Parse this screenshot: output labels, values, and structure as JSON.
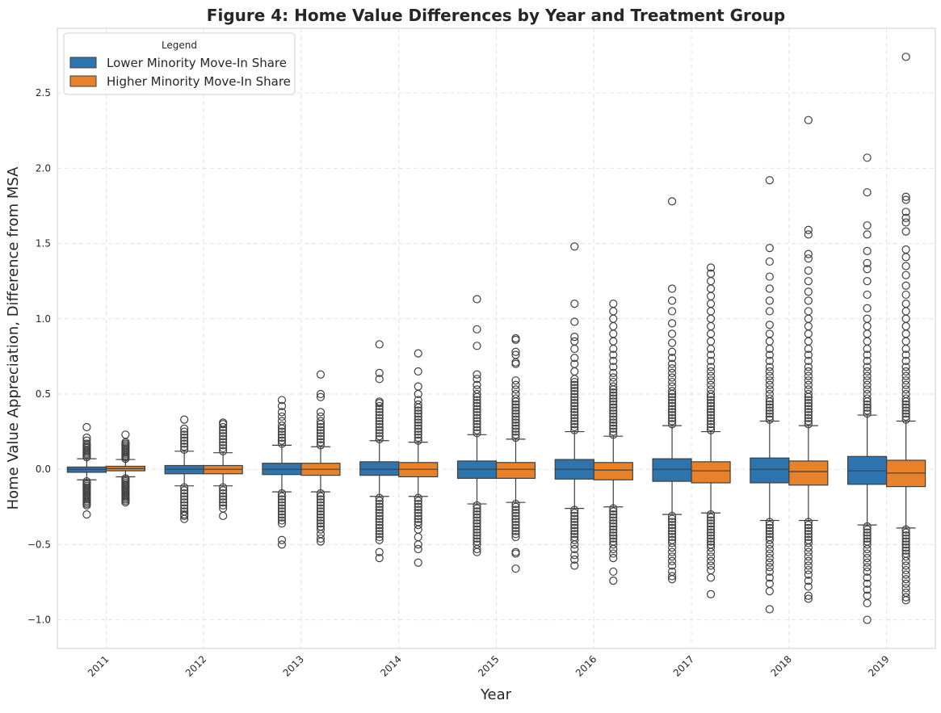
{
  "chart_data": {
    "type": "box",
    "title": "Figure 4: Home Value Differences by Year and Treatment Group",
    "xlabel": "Year",
    "ylabel": "Home Value Appreciation, Difference from MSA",
    "categories": [
      "2011",
      "2012",
      "2013",
      "2014",
      "2015",
      "2016",
      "2017",
      "2018",
      "2019"
    ],
    "ylim": [
      -1.19,
      2.93
    ],
    "yticks": [
      -1.0,
      -0.5,
      0.0,
      0.5,
      1.0,
      1.5,
      2.0,
      2.5
    ],
    "ytick_labels": [
      "−1.0",
      "−0.5",
      "0.0",
      "0.5",
      "1.0",
      "1.5",
      "2.0",
      "2.5"
    ],
    "grid": true,
    "legend": {
      "title": "Legend",
      "position": "top-left"
    },
    "series": [
      {
        "name": "Lower Minority Move-In Share",
        "color": "#2e75b0",
        "boxes": [
          {
            "q1": -0.02,
            "median": 0.0,
            "q3": 0.015,
            "whisker_low": -0.07,
            "whisker_high": 0.07,
            "outliers_high": [
              0.08,
              0.09,
              0.1,
              0.11,
              0.12,
              0.13,
              0.14,
              0.15,
              0.16,
              0.17,
              0.19,
              0.21,
              0.28
            ],
            "outliers_low": [
              -0.08,
              -0.09,
              -0.1,
              -0.11,
              -0.12,
              -0.13,
              -0.14,
              -0.15,
              -0.16,
              -0.17,
              -0.18,
              -0.19,
              -0.2,
              -0.21,
              -0.22,
              -0.23,
              -0.24,
              -0.3
            ]
          },
          {
            "q1": -0.03,
            "median": 0.0,
            "q3": 0.025,
            "whisker_low": -0.11,
            "whisker_high": 0.12,
            "outliers_high": [
              0.13,
              0.15,
              0.17,
              0.19,
              0.21,
              0.23,
              0.25,
              0.27,
              0.33
            ],
            "outliers_low": [
              -0.12,
              -0.14,
              -0.16,
              -0.18,
              -0.2,
              -0.22,
              -0.24,
              -0.26,
              -0.28,
              -0.3,
              -0.31,
              -0.33
            ]
          },
          {
            "q1": -0.035,
            "median": 0.0,
            "q3": 0.04,
            "whisker_low": -0.15,
            "whisker_high": 0.16,
            "outliers_high": [
              0.17,
              0.19,
              0.21,
              0.23,
              0.25,
              0.27,
              0.29,
              0.32,
              0.35,
              0.38,
              0.42,
              0.46
            ],
            "outliers_low": [
              -0.16,
              -0.18,
              -0.2,
              -0.22,
              -0.24,
              -0.26,
              -0.28,
              -0.3,
              -0.32,
              -0.34,
              -0.36,
              -0.47,
              -0.5
            ]
          },
          {
            "q1": -0.04,
            "median": 0.0,
            "q3": 0.05,
            "whisker_low": -0.18,
            "whisker_high": 0.19,
            "outliers_high": [
              0.2,
              0.22,
              0.24,
              0.26,
              0.28,
              0.3,
              0.32,
              0.34,
              0.36,
              0.38,
              0.4,
              0.42,
              0.44,
              0.45,
              0.6,
              0.64,
              0.83
            ],
            "outliers_low": [
              -0.19,
              -0.21,
              -0.23,
              -0.25,
              -0.27,
              -0.29,
              -0.31,
              -0.33,
              -0.35,
              -0.37,
              -0.39,
              -0.41,
              -0.43,
              -0.45,
              -0.47,
              -0.55,
              -0.59
            ]
          },
          {
            "q1": -0.06,
            "median": 0.0,
            "q3": 0.055,
            "whisker_low": -0.23,
            "whisker_high": 0.23,
            "outliers_high": [
              0.24,
              0.26,
              0.28,
              0.3,
              0.32,
              0.34,
              0.36,
              0.38,
              0.4,
              0.42,
              0.44,
              0.46,
              0.48,
              0.5,
              0.53,
              0.56,
              0.6,
              0.63,
              0.82,
              0.93,
              1.13
            ],
            "outliers_low": [
              -0.24,
              -0.26,
              -0.28,
              -0.3,
              -0.32,
              -0.34,
              -0.36,
              -0.38,
              -0.4,
              -0.42,
              -0.44,
              -0.46,
              -0.48,
              -0.5,
              -0.53,
              -0.55
            ]
          },
          {
            "q1": -0.065,
            "median": 0.0,
            "q3": 0.065,
            "whisker_low": -0.26,
            "whisker_high": 0.25,
            "outliers_high": [
              0.26,
              0.28,
              0.3,
              0.32,
              0.34,
              0.36,
              0.38,
              0.4,
              0.42,
              0.44,
              0.46,
              0.48,
              0.5,
              0.52,
              0.54,
              0.56,
              0.58,
              0.6,
              0.65,
              0.7,
              0.74,
              0.8,
              0.85,
              0.88,
              0.98,
              1.1,
              1.48
            ],
            "outliers_low": [
              -0.27,
              -0.29,
              -0.31,
              -0.33,
              -0.35,
              -0.37,
              -0.39,
              -0.41,
              -0.43,
              -0.45,
              -0.47,
              -0.5,
              -0.53,
              -0.57,
              -0.6,
              -0.64
            ]
          },
          {
            "q1": -0.08,
            "median": 0.0,
            "q3": 0.07,
            "whisker_low": -0.3,
            "whisker_high": 0.29,
            "outliers_high": [
              0.3,
              0.32,
              0.34,
              0.36,
              0.38,
              0.4,
              0.42,
              0.44,
              0.46,
              0.48,
              0.5,
              0.52,
              0.55,
              0.58,
              0.61,
              0.64,
              0.67,
              0.7,
              0.74,
              0.78,
              0.84,
              0.9,
              0.97,
              1.05,
              1.12,
              1.2,
              1.78
            ],
            "outliers_low": [
              -0.31,
              -0.33,
              -0.35,
              -0.37,
              -0.39,
              -0.41,
              -0.43,
              -0.45,
              -0.47,
              -0.49,
              -0.52,
              -0.55,
              -0.58,
              -0.61,
              -0.64,
              -0.68,
              -0.71,
              -0.73
            ]
          },
          {
            "q1": -0.09,
            "median": 0.0,
            "q3": 0.075,
            "whisker_low": -0.34,
            "whisker_high": 0.32,
            "outliers_high": [
              0.33,
              0.35,
              0.37,
              0.39,
              0.41,
              0.43,
              0.45,
              0.47,
              0.5,
              0.53,
              0.56,
              0.59,
              0.62,
              0.65,
              0.68,
              0.72,
              0.76,
              0.8,
              0.85,
              0.9,
              0.96,
              1.05,
              1.12,
              1.2,
              1.28,
              1.38,
              1.47,
              1.92
            ],
            "outliers_low": [
              -0.35,
              -0.37,
              -0.39,
              -0.41,
              -0.43,
              -0.45,
              -0.47,
              -0.5,
              -0.53,
              -0.56,
              -0.59,
              -0.62,
              -0.65,
              -0.68,
              -0.72,
              -0.76,
              -0.81,
              -0.93
            ]
          },
          {
            "q1": -0.1,
            "median": -0.01,
            "q3": 0.085,
            "whisker_low": -0.37,
            "whisker_high": 0.36,
            "outliers_high": [
              0.37,
              0.39,
              0.41,
              0.43,
              0.45,
              0.47,
              0.5,
              0.53,
              0.56,
              0.59,
              0.62,
              0.65,
              0.68,
              0.72,
              0.76,
              0.8,
              0.85,
              0.9,
              0.95,
              1.0,
              1.07,
              1.16,
              1.25,
              1.33,
              1.37,
              1.45,
              1.56,
              1.62,
              1.84,
              2.07
            ],
            "outliers_low": [
              -0.38,
              -0.4,
              -0.42,
              -0.44,
              -0.46,
              -0.48,
              -0.5,
              -0.53,
              -0.56,
              -0.59,
              -0.62,
              -0.65,
              -0.68,
              -0.72,
              -0.76,
              -0.8,
              -0.84,
              -0.89,
              -1.0
            ]
          }
        ]
      },
      {
        "name": "Higher Minority Move-In Share",
        "color": "#e8822a",
        "boxes": [
          {
            "q1": -0.01,
            "median": 0.005,
            "q3": 0.02,
            "whisker_low": -0.05,
            "whisker_high": 0.065,
            "outliers_high": [
              0.07,
              0.08,
              0.09,
              0.1,
              0.11,
              0.12,
              0.13,
              0.14,
              0.15,
              0.16,
              0.17,
              0.18,
              0.23
            ],
            "outliers_low": [
              -0.06,
              -0.07,
              -0.08,
              -0.09,
              -0.1,
              -0.11,
              -0.12,
              -0.13,
              -0.14,
              -0.15,
              -0.16,
              -0.17,
              -0.18,
              -0.19,
              -0.2,
              -0.21,
              -0.22
            ]
          },
          {
            "q1": -0.03,
            "median": 0.0,
            "q3": 0.025,
            "whisker_low": -0.11,
            "whisker_high": 0.11,
            "outliers_high": [
              0.12,
              0.14,
              0.16,
              0.18,
              0.2,
              0.22,
              0.24,
              0.26,
              0.28,
              0.3,
              0.31
            ],
            "outliers_low": [
              -0.12,
              -0.14,
              -0.16,
              -0.18,
              -0.2,
              -0.22,
              -0.24,
              -0.26,
              -0.31
            ]
          },
          {
            "q1": -0.04,
            "median": 0.0,
            "q3": 0.04,
            "whisker_low": -0.15,
            "whisker_high": 0.15,
            "outliers_high": [
              0.16,
              0.18,
              0.2,
              0.22,
              0.24,
              0.26,
              0.28,
              0.3,
              0.32,
              0.35,
              0.38,
              0.48,
              0.5,
              0.63
            ],
            "outliers_low": [
              -0.16,
              -0.18,
              -0.2,
              -0.22,
              -0.24,
              -0.26,
              -0.28,
              -0.3,
              -0.32,
              -0.34,
              -0.36,
              -0.38,
              -0.4,
              -0.43,
              -0.46,
              -0.48
            ]
          },
          {
            "q1": -0.05,
            "median": 0.0,
            "q3": 0.045,
            "whisker_low": -0.18,
            "whisker_high": 0.18,
            "outliers_high": [
              0.19,
              0.21,
              0.23,
              0.25,
              0.27,
              0.29,
              0.31,
              0.33,
              0.35,
              0.37,
              0.39,
              0.41,
              0.43,
              0.46,
              0.5,
              0.55,
              0.65,
              0.77
            ],
            "outliers_low": [
              -0.19,
              -0.21,
              -0.23,
              -0.25,
              -0.27,
              -0.29,
              -0.31,
              -0.33,
              -0.35,
              -0.37,
              -0.4,
              -0.45,
              -0.5,
              -0.53,
              -0.62
            ]
          },
          {
            "q1": -0.06,
            "median": 0.0,
            "q3": 0.045,
            "whisker_low": -0.22,
            "whisker_high": 0.2,
            "outliers_high": [
              0.21,
              0.23,
              0.25,
              0.27,
              0.29,
              0.31,
              0.33,
              0.35,
              0.37,
              0.39,
              0.41,
              0.43,
              0.45,
              0.47,
              0.5,
              0.53,
              0.56,
              0.59,
              0.7,
              0.71,
              0.76,
              0.78,
              0.86,
              0.87
            ],
            "outliers_low": [
              -0.23,
              -0.25,
              -0.27,
              -0.29,
              -0.31,
              -0.33,
              -0.35,
              -0.37,
              -0.39,
              -0.41,
              -0.43,
              -0.45,
              -0.55,
              -0.56,
              -0.66
            ]
          },
          {
            "q1": -0.07,
            "median": -0.005,
            "q3": 0.045,
            "whisker_low": -0.25,
            "whisker_high": 0.22,
            "outliers_high": [
              0.23,
              0.25,
              0.27,
              0.29,
              0.31,
              0.33,
              0.35,
              0.37,
              0.39,
              0.41,
              0.43,
              0.45,
              0.47,
              0.49,
              0.51,
              0.53,
              0.55,
              0.58,
              0.61,
              0.64,
              0.68,
              0.72,
              0.76,
              0.8,
              0.85,
              0.9,
              0.95,
              1.0,
              1.05,
              1.1
            ],
            "outliers_low": [
              -0.26,
              -0.28,
              -0.3,
              -0.32,
              -0.34,
              -0.36,
              -0.38,
              -0.4,
              -0.42,
              -0.44,
              -0.46,
              -0.48,
              -0.5,
              -0.53,
              -0.56,
              -0.59,
              -0.68,
              -0.74
            ]
          },
          {
            "q1": -0.09,
            "median": -0.01,
            "q3": 0.05,
            "whisker_low": -0.29,
            "whisker_high": 0.25,
            "outliers_high": [
              0.26,
              0.28,
              0.3,
              0.32,
              0.34,
              0.36,
              0.38,
              0.4,
              0.42,
              0.44,
              0.46,
              0.48,
              0.5,
              0.53,
              0.56,
              0.59,
              0.62,
              0.65,
              0.68,
              0.72,
              0.76,
              0.8,
              0.85,
              0.9,
              0.95,
              1.0,
              1.05,
              1.1,
              1.15,
              1.2,
              1.25,
              1.3,
              1.34
            ],
            "outliers_low": [
              -0.3,
              -0.32,
              -0.34,
              -0.36,
              -0.38,
              -0.4,
              -0.42,
              -0.44,
              -0.46,
              -0.48,
              -0.5,
              -0.52,
              -0.55,
              -0.58,
              -0.61,
              -0.64,
              -0.67,
              -0.72,
              -0.83
            ]
          },
          {
            "q1": -0.105,
            "median": -0.015,
            "q3": 0.055,
            "whisker_low": -0.34,
            "whisker_high": 0.29,
            "outliers_high": [
              0.3,
              0.32,
              0.34,
              0.36,
              0.38,
              0.4,
              0.42,
              0.44,
              0.46,
              0.48,
              0.5,
              0.53,
              0.56,
              0.59,
              0.62,
              0.65,
              0.68,
              0.72,
              0.76,
              0.8,
              0.85,
              0.9,
              0.95,
              1.0,
              1.05,
              1.12,
              1.18,
              1.25,
              1.32,
              1.4,
              1.43,
              1.56,
              1.59,
              2.32
            ],
            "outliers_low": [
              -0.35,
              -0.37,
              -0.39,
              -0.41,
              -0.43,
              -0.45,
              -0.47,
              -0.49,
              -0.52,
              -0.55,
              -0.58,
              -0.61,
              -0.64,
              -0.67,
              -0.7,
              -0.74,
              -0.78,
              -0.84,
              -0.86
            ]
          },
          {
            "q1": -0.115,
            "median": -0.025,
            "q3": 0.06,
            "whisker_low": -0.39,
            "whisker_high": 0.32,
            "outliers_high": [
              0.33,
              0.35,
              0.37,
              0.39,
              0.41,
              0.43,
              0.45,
              0.47,
              0.5,
              0.53,
              0.56,
              0.59,
              0.62,
              0.65,
              0.68,
              0.72,
              0.76,
              0.8,
              0.85,
              0.9,
              0.95,
              1.0,
              1.05,
              1.1,
              1.16,
              1.22,
              1.29,
              1.35,
              1.41,
              1.46,
              1.58,
              1.64,
              1.67,
              1.71,
              1.79,
              1.81,
              2.74
            ],
            "outliers_low": [
              -0.4,
              -0.42,
              -0.44,
              -0.46,
              -0.48,
              -0.5,
              -0.52,
              -0.54,
              -0.56,
              -0.58,
              -0.61,
              -0.64,
              -0.67,
              -0.7,
              -0.73,
              -0.76,
              -0.79,
              -0.82,
              -0.85,
              -0.87
            ]
          }
        ]
      }
    ]
  }
}
